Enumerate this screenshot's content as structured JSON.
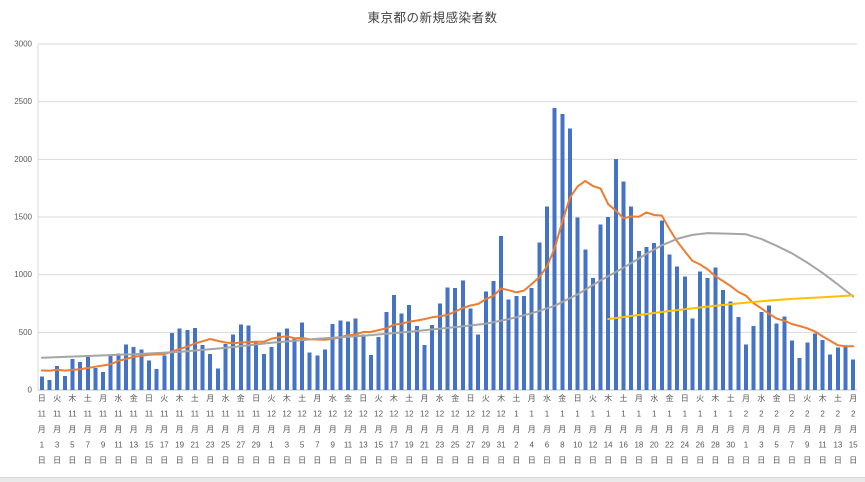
{
  "chart_data": {
    "type": "bar",
    "title": "東京都の新規感染者数",
    "ylim": [
      0,
      3000
    ],
    "y_ticks": [
      0,
      500,
      1000,
      1500,
      2000,
      2500,
      3000
    ],
    "grid": true,
    "bar_color": "#4472C4",
    "grid_color": "#d9d9d9",
    "axis_color": "#bfbfbf",
    "tick_label_color": "#595959",
    "x_tick_every": 2,
    "values": [
      116,
      87,
      209,
      122,
      269,
      242,
      294,
      189,
      157,
      293,
      317,
      393,
      374,
      352,
      255,
      180,
      298,
      493,
      534,
      522,
      539,
      391,
      314,
      186,
      401,
      481,
      570,
      561,
      418,
      311,
      372,
      500,
      533,
      449,
      584,
      327,
      299,
      352,
      572,
      602,
      595,
      621,
      480,
      305,
      460,
      678,
      822,
      664,
      736,
      556,
      392,
      563,
      748,
      888,
      884,
      949,
      708,
      481,
      856,
      944,
      1337,
      783,
      814,
      816,
      884,
      1278,
      1591,
      2447,
      2392,
      2268,
      1494,
      1219,
      970,
      1433,
      1502,
      2001,
      1809,
      1592,
      1204,
      1240,
      1274,
      1471,
      1175,
      1070,
      986,
      618,
      1026,
      973,
      1064,
      868,
      769,
      633,
      393,
      556,
      676,
      734,
      577,
      639,
      429,
      276,
      412,
      491,
      434,
      307,
      369,
      371,
      266
    ],
    "lines": [
      {
        "name": "ma-line-orange",
        "color": "#ED7D31",
        "values": [
          169,
          167,
          175,
          168,
          174,
          180,
          191,
          202,
          212,
          224,
          252,
          269,
          288,
          296,
          306,
          309,
          310,
          335,
          355,
          376,
          403,
          422,
          442,
          426,
          412,
          405,
          412,
          415,
          419,
          418,
          445,
          459,
          466,
          449,
          452,
          439,
          438,
          435,
          445,
          455,
          476,
          481,
          503,
          504,
          519,
          534,
          566,
          576,
          592,
          603,
          615,
          630,
          640,
          650,
          681,
          711,
          733,
          746,
          788,
          816,
          880,
          865,
          846,
          862,
          919,
          979,
          1072,
          1230,
          1460,
          1668,
          1765,
          1813,
          1769,
          1746,
          1611,
          1555,
          1490,
          1504,
          1502,
          1540,
          1517,
          1513,
          1395,
          1289,
          1203,
          1119,
          1089,
          1046,
          987,
          944,
          901,
          850,
          818,
          751,
          708,
          661,
          620,
          601,
          572,
          555,
          535,
          508,
          465,
          427,
          388,
          380,
          379
        ]
      },
      {
        "name": "ma-line-gray",
        "color": "#A5A5A5",
        "points": [
          [
            0,
            280
          ],
          [
            6,
            295
          ],
          [
            12,
            310
          ],
          [
            18,
            330
          ],
          [
            24,
            365
          ],
          [
            30,
            410
          ],
          [
            36,
            445
          ],
          [
            42,
            470
          ],
          [
            48,
            505
          ],
          [
            54,
            545
          ],
          [
            58,
            575
          ],
          [
            61,
            615
          ],
          [
            64,
            665
          ],
          [
            67,
            730
          ],
          [
            70,
            830
          ],
          [
            73,
            950
          ],
          [
            76,
            1060
          ],
          [
            79,
            1180
          ],
          [
            81,
            1255
          ],
          [
            83,
            1310
          ],
          [
            85,
            1345
          ],
          [
            87,
            1360
          ],
          [
            90,
            1355
          ],
          [
            92,
            1350
          ],
          [
            94,
            1310
          ],
          [
            96,
            1250
          ],
          [
            98,
            1185
          ],
          [
            100,
            1105
          ],
          [
            102,
            1015
          ],
          [
            104,
            915
          ],
          [
            106,
            810
          ]
        ]
      },
      {
        "name": "trend-line-yellow",
        "color": "#FFC000",
        "points": [
          [
            74,
            615
          ],
          [
            78,
            650
          ],
          [
            82,
            685
          ],
          [
            86,
            715
          ],
          [
            90,
            745
          ],
          [
            94,
            770
          ],
          [
            98,
            790
          ],
          [
            102,
            805
          ],
          [
            106,
            820
          ]
        ]
      }
    ],
    "x_labels": [
      [
        "日",
        "11",
        "月",
        "1",
        "日"
      ],
      [
        "火",
        "11",
        "月",
        "3",
        "日"
      ],
      [
        "木",
        "11",
        "月",
        "5",
        "日"
      ],
      [
        "土",
        "11",
        "月",
        "7",
        "日"
      ],
      [
        "月",
        "11",
        "月",
        "9",
        "日"
      ],
      [
        "水",
        "11",
        "月",
        "11",
        "日"
      ],
      [
        "金",
        "11",
        "月",
        "13",
        "日"
      ],
      [
        "日",
        "11",
        "月",
        "15",
        "日"
      ],
      [
        "火",
        "11",
        "月",
        "17",
        "日"
      ],
      [
        "木",
        "11",
        "月",
        "19",
        "日"
      ],
      [
        "土",
        "11",
        "月",
        "21",
        "日"
      ],
      [
        "月",
        "11",
        "月",
        "23",
        "日"
      ],
      [
        "水",
        "11",
        "月",
        "25",
        "日"
      ],
      [
        "金",
        "11",
        "月",
        "27",
        "日"
      ],
      [
        "日",
        "11",
        "月",
        "29",
        "日"
      ],
      [
        "火",
        "12",
        "月",
        "1",
        "日"
      ],
      [
        "木",
        "12",
        "月",
        "3",
        "日"
      ],
      [
        "土",
        "12",
        "月",
        "5",
        "日"
      ],
      [
        "月",
        "12",
        "月",
        "7",
        "日"
      ],
      [
        "水",
        "12",
        "月",
        "9",
        "日"
      ],
      [
        "金",
        "12",
        "月",
        "11",
        "日"
      ],
      [
        "日",
        "12",
        "月",
        "13",
        "日"
      ],
      [
        "火",
        "12",
        "月",
        "15",
        "日"
      ],
      [
        "木",
        "12",
        "月",
        "17",
        "日"
      ],
      [
        "土",
        "12",
        "月",
        "19",
        "日"
      ],
      [
        "月",
        "12",
        "月",
        "21",
        "日"
      ],
      [
        "水",
        "12",
        "月",
        "23",
        "日"
      ],
      [
        "金",
        "12",
        "月",
        "25",
        "日"
      ],
      [
        "日",
        "12",
        "月",
        "27",
        "日"
      ],
      [
        "火",
        "12",
        "月",
        "29",
        "日"
      ],
      [
        "木",
        "12",
        "月",
        "31",
        "日"
      ],
      [
        "土",
        "1",
        "月",
        "2",
        "日"
      ],
      [
        "月",
        "1",
        "月",
        "4",
        "日"
      ],
      [
        "水",
        "1",
        "月",
        "6",
        "日"
      ],
      [
        "金",
        "1",
        "月",
        "8",
        "日"
      ],
      [
        "日",
        "1",
        "月",
        "10",
        "日"
      ],
      [
        "火",
        "1",
        "月",
        "12",
        "日"
      ],
      [
        "木",
        "1",
        "月",
        "14",
        "日"
      ],
      [
        "土",
        "1",
        "月",
        "16",
        "日"
      ],
      [
        "月",
        "1",
        "月",
        "18",
        "日"
      ],
      [
        "水",
        "1",
        "月",
        "20",
        "日"
      ],
      [
        "金",
        "1",
        "月",
        "22",
        "日"
      ],
      [
        "日",
        "1",
        "月",
        "24",
        "日"
      ],
      [
        "火",
        "1",
        "月",
        "26",
        "日"
      ],
      [
        "木",
        "1",
        "月",
        "28",
        "日"
      ],
      [
        "土",
        "1",
        "月",
        "30",
        "日"
      ],
      [
        "月",
        "2",
        "月",
        "1",
        "日"
      ],
      [
        "水",
        "2",
        "月",
        "3",
        "日"
      ],
      [
        "金",
        "2",
        "月",
        "5",
        "日"
      ],
      [
        "日",
        "2",
        "月",
        "7",
        "日"
      ],
      [
        "火",
        "2",
        "月",
        "9",
        "日"
      ],
      [
        "木",
        "2",
        "月",
        "11",
        "日"
      ],
      [
        "土",
        "2",
        "月",
        "13",
        "日"
      ],
      [
        "月",
        "2",
        "月",
        "15",
        "日"
      ]
    ]
  }
}
